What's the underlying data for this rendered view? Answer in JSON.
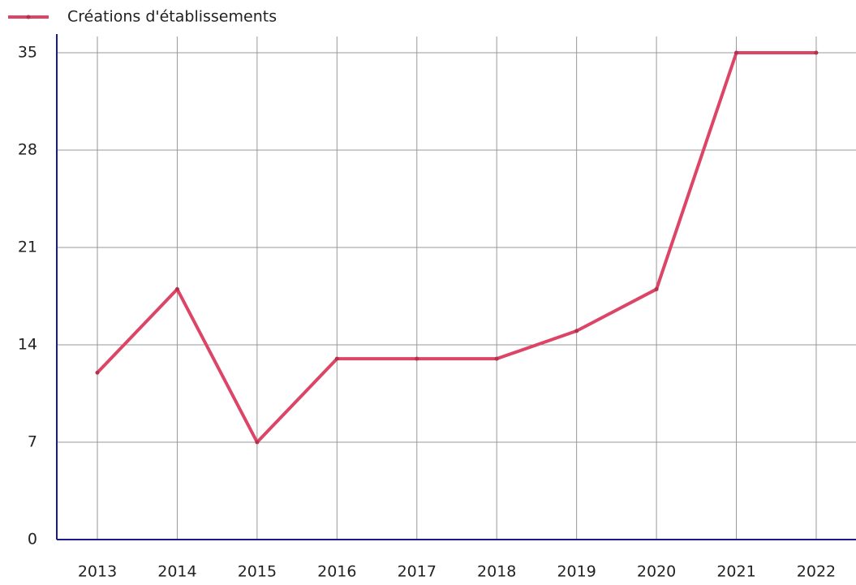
{
  "chart_data": {
    "type": "line",
    "categories": [
      "2013",
      "2014",
      "2015",
      "2016",
      "2017",
      "2018",
      "2019",
      "2020",
      "2021",
      "2022"
    ],
    "series": [
      {
        "name": "Créations d'établissements",
        "color": "#dc4566",
        "values": [
          12,
          18,
          7,
          13,
          13,
          13,
          15,
          18,
          35,
          35
        ]
      }
    ],
    "ylim": [
      0,
      35
    ],
    "yticks": [
      0,
      7,
      14,
      21,
      28,
      35
    ],
    "grid": true,
    "legend": "top-left"
  }
}
